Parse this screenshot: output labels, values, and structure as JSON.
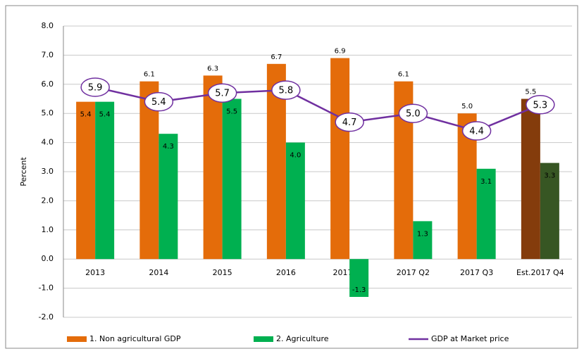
{
  "chart_data": {
    "type": "bar-line",
    "y_label": "Percent",
    "categories": [
      "2013",
      "2014",
      "2015",
      "2016",
      "2017 Q1",
      "2017 Q2",
      "2017 Q3",
      "Est.2017 Q4"
    ],
    "series": [
      {
        "name": "1. Non agricultural GDP",
        "kind": "bar",
        "color": "#e46c0a",
        "colors": [
          "#e46c0a",
          "#e46c0a",
          "#e46c0a",
          "#e46c0a",
          "#e46c0a",
          "#e46c0a",
          "#e46c0a",
          "#843c0c"
        ],
        "values": [
          5.4,
          6.1,
          6.3,
          6.7,
          6.9,
          6.1,
          5.0,
          5.5
        ],
        "value_labels": [
          "5.4",
          "6.1",
          "6.3",
          "6.7",
          "6.9",
          "6.1",
          "5.0",
          "5.5"
        ]
      },
      {
        "name": "2. Agriculture",
        "kind": "bar",
        "color": "#00b050",
        "colors": [
          "#00b050",
          "#00b050",
          "#00b050",
          "#00b050",
          "#00b050",
          "#00b050",
          "#00b050",
          "#375623"
        ],
        "values": [
          5.4,
          4.3,
          5.5,
          4.0,
          -1.3,
          1.3,
          3.1,
          3.3
        ],
        "value_labels": [
          "5.4",
          "4.3",
          "5.5",
          "4.0",
          "-1.3",
          "1.3",
          "3.1",
          "3.3"
        ]
      },
      {
        "name": "GDP at Market price",
        "kind": "line",
        "color": "#7030a0",
        "values": [
          5.9,
          5.4,
          5.7,
          5.8,
          4.7,
          5.0,
          4.4,
          5.3
        ],
        "value_labels": [
          "5.9",
          "5.4",
          "5.7",
          "5.8",
          "4.7",
          "5.0",
          "4.4",
          "5.3"
        ]
      }
    ],
    "ylim": [
      -2,
      8
    ],
    "yticks": [
      {
        "value": -2,
        "label": "-2.0"
      },
      {
        "value": -1,
        "label": "-1.0"
      },
      {
        "value": 0,
        "label": "0.0"
      },
      {
        "value": 1,
        "label": "1.0"
      },
      {
        "value": 2,
        "label": "2.0"
      },
      {
        "value": 3,
        "label": "3.0"
      },
      {
        "value": 4,
        "label": "4.0"
      },
      {
        "value": 5,
        "label": "5.0"
      },
      {
        "value": 6,
        "label": "6.0"
      },
      {
        "value": 7,
        "label": "7.0"
      },
      {
        "value": 8,
        "label": "8.0"
      }
    ],
    "grid": true,
    "legend": "bottom"
  }
}
